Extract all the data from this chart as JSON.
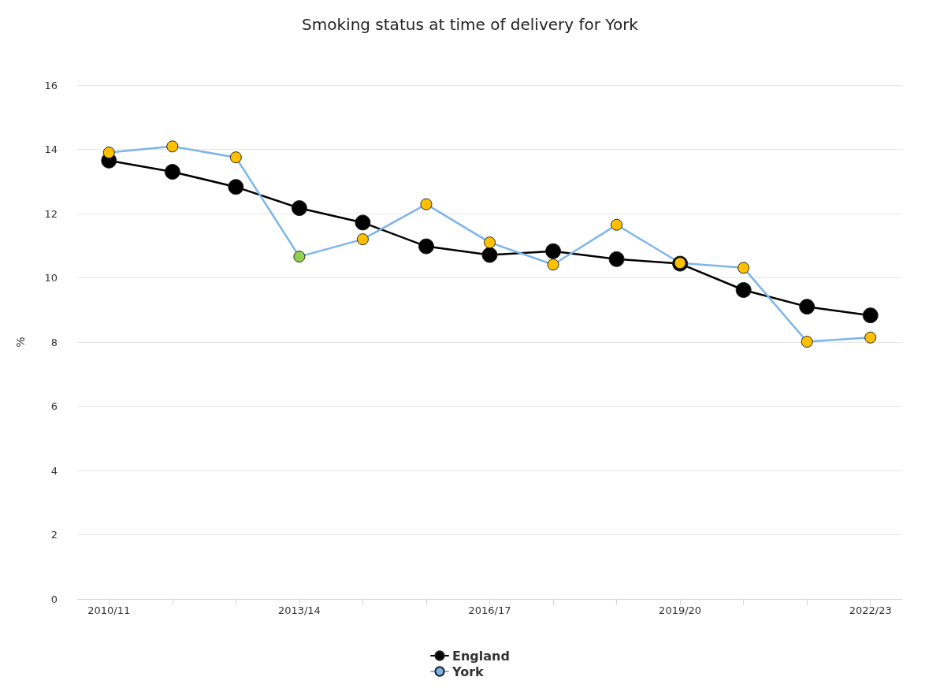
{
  "chart_data": {
    "type": "line",
    "title": "Smoking status at time of delivery for York",
    "ylabel": "%",
    "categories": [
      "2010/11",
      null,
      null,
      "2013/14",
      null,
      null,
      "2016/17",
      null,
      null,
      "2019/20",
      null,
      null,
      "2022/23"
    ],
    "series": [
      {
        "name": "England",
        "color": "#000000",
        "values": [
          13.65,
          13.3,
          12.83,
          12.17,
          11.72,
          10.98,
          10.71,
          10.83,
          10.58,
          10.44,
          9.62,
          9.1,
          8.83
        ]
      },
      {
        "name": "York",
        "color": "#7cb5ec",
        "colors": [
          "#ffc000",
          "#ffc000",
          "#ffc000",
          "#92d050",
          "#ffc000",
          "#ffc000",
          "#ffc000",
          "#ffc000",
          "#ffc000",
          "#ffc000",
          "#ffc000",
          "#ffc000",
          "#ffc000"
        ],
        "values": [
          13.9,
          14.09,
          13.75,
          10.66,
          11.2,
          12.29,
          11.1,
          10.41,
          11.65,
          10.46,
          10.31,
          8.01,
          8.14
        ]
      }
    ],
    "ylim": [
      0,
      16
    ],
    "yticks": [
      0,
      2,
      4,
      6,
      8,
      10,
      12,
      14,
      16
    ],
    "grid": "y",
    "legend": "bottom",
    "marker": "circle",
    "line_style": "solid"
  }
}
